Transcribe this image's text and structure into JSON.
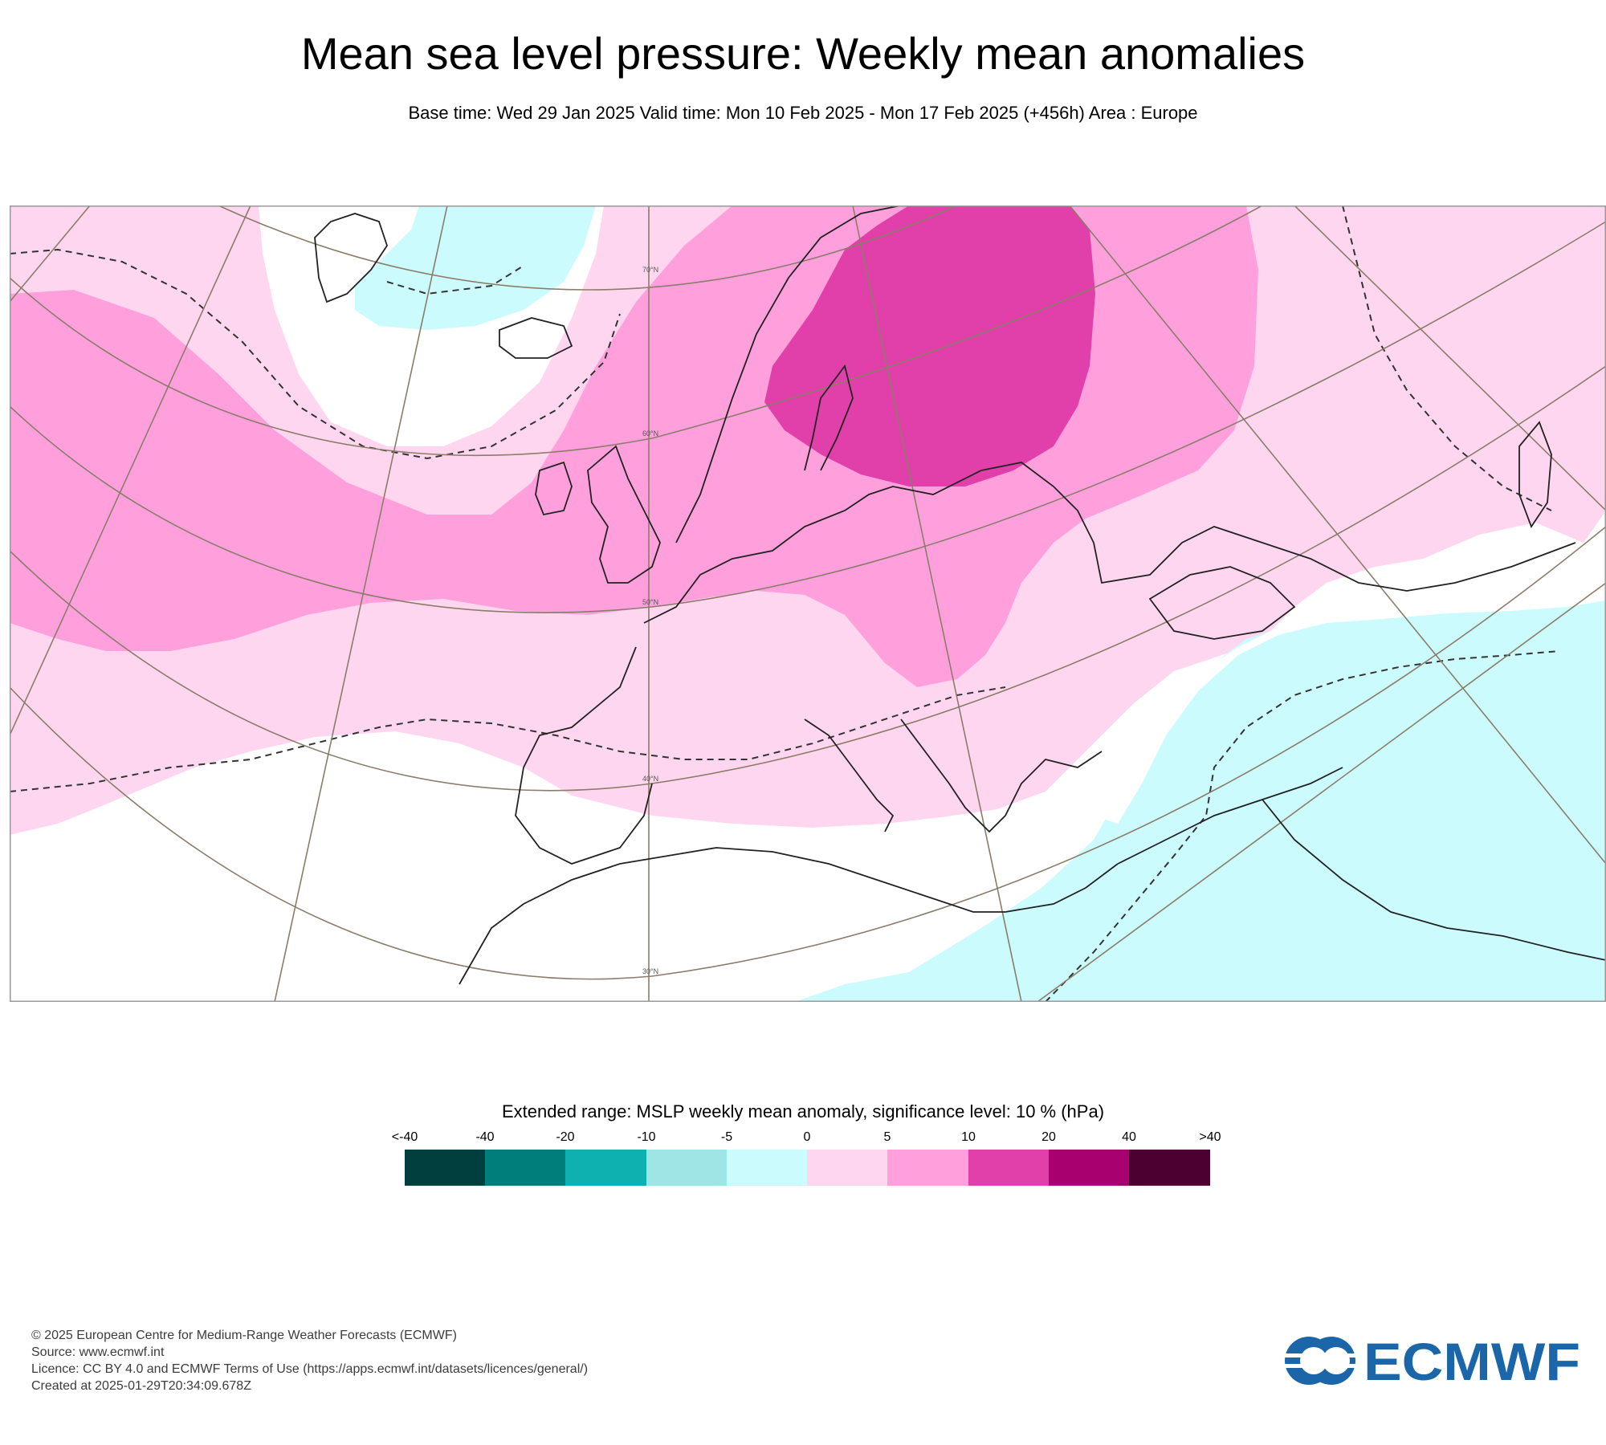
{
  "header": {
    "title": "Mean sea level pressure: Weekly mean anomalies",
    "subtitle": "Base time: Wed 29 Jan 2025 Valid time: Mon 10 Feb 2025 - Mon 17 Feb 2025 (+456h) Area : Europe"
  },
  "map": {
    "latitude_labels": [
      "70°N",
      "60°N",
      "50°N",
      "40°N",
      "30°N"
    ],
    "fill_colors": {
      "plus_0_5": "#ffd6ef",
      "plus_5_10": "#ffa0dc",
      "plus_10_20": "#e13fa9",
      "minus_5_0": "#ccfbfd"
    }
  },
  "legend": {
    "title": "Extended range: MSLP weekly mean anomaly, significance level: 10 % (hPa)",
    "tick_labels": [
      "<-40",
      "-40",
      "-20",
      "-10",
      "-5",
      "0",
      "5",
      "10",
      "20",
      "40",
      ">40"
    ],
    "colors": [
      "#003f3e",
      "#007e7b",
      "#0fb1b0",
      "#9fe5e6",
      "#ccfbfd",
      "#ffd6ef",
      "#ffa0dc",
      "#e13fa9",
      "#a8006e",
      "#4c0031"
    ]
  },
  "footer": {
    "line1": "© 2025 European Centre for Medium-Range Weather Forecasts (ECMWF)",
    "line2": "Source: www.ecmwf.int",
    "line3": "Licence: CC BY 4.0 and ECMWF Terms of Use (https://apps.ecmwf.int/datasets/licences/general/)",
    "line4": "Created at 2025-01-29T20:34:09.678Z"
  },
  "logo": {
    "text": "ECMWF",
    "color": "#1a66a8"
  }
}
